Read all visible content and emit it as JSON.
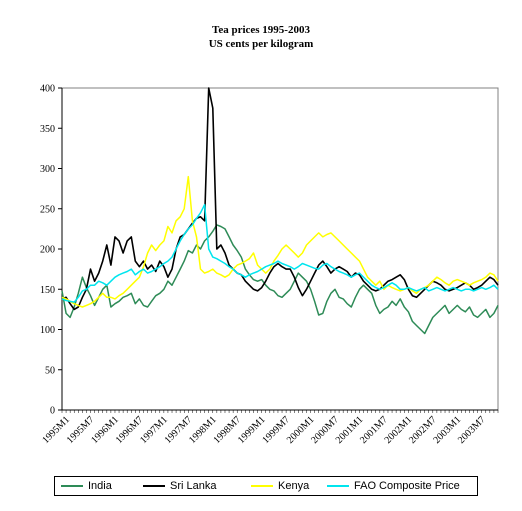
{
  "chart_data": {
    "type": "line",
    "title": "Tea prices 1995-2003",
    "subtitle": "US cents per kilogram",
    "ylim": [
      0,
      400
    ],
    "yticks": [
      0,
      50,
      100,
      150,
      200,
      250,
      300,
      350,
      400
    ],
    "xtick_labels": [
      "1995M1",
      "1995M7",
      "1996M1",
      "1996M7",
      "1997M1",
      "1997M7",
      "1998M1",
      "1998M7",
      "1999M1",
      "1999M7",
      "2000M1",
      "2000M7",
      "2001M1",
      "2001M7",
      "2002M1",
      "2002M7",
      "2003M1",
      "2003M7"
    ],
    "months": 108,
    "grid": false,
    "legend_position": "bottom",
    "series": [
      {
        "name": "India",
        "color": "#2e8b57",
        "values": [
          148,
          120,
          115,
          128,
          145,
          165,
          152,
          142,
          130,
          140,
          150,
          155,
          128,
          132,
          135,
          140,
          142,
          145,
          132,
          138,
          130,
          128,
          135,
          142,
          145,
          150,
          160,
          155,
          165,
          175,
          185,
          198,
          195,
          205,
          200,
          210,
          215,
          222,
          230,
          228,
          225,
          215,
          205,
          198,
          190,
          175,
          168,
          162,
          160,
          162,
          155,
          150,
          148,
          142,
          140,
          145,
          150,
          160,
          170,
          165,
          160,
          150,
          135,
          118,
          120,
          135,
          145,
          150,
          140,
          138,
          132,
          128,
          140,
          150,
          155,
          150,
          145,
          130,
          120,
          125,
          128,
          135,
          130,
          138,
          128,
          122,
          110,
          105,
          100,
          95,
          105,
          115,
          120,
          125,
          130,
          120,
          125,
          130,
          125,
          122,
          128,
          118,
          115,
          120,
          125,
          115,
          120,
          130
        ]
      },
      {
        "name": "Sri Lanka",
        "color": "#000000",
        "values": [
          138,
          140,
          132,
          125,
          128,
          140,
          150,
          175,
          160,
          170,
          185,
          205,
          180,
          215,
          210,
          195,
          210,
          215,
          185,
          178,
          185,
          175,
          180,
          172,
          185,
          178,
          165,
          175,
          200,
          215,
          218,
          225,
          232,
          238,
          240,
          235,
          400,
          375,
          200,
          205,
          195,
          180,
          175,
          170,
          168,
          160,
          155,
          150,
          148,
          152,
          160,
          170,
          178,
          182,
          178,
          175,
          175,
          165,
          152,
          142,
          150,
          160,
          170,
          180,
          185,
          178,
          170,
          175,
          178,
          175,
          172,
          165,
          170,
          168,
          160,
          155,
          150,
          148,
          150,
          155,
          160,
          162,
          165,
          168,
          162,
          150,
          142,
          140,
          145,
          150,
          155,
          160,
          158,
          155,
          150,
          148,
          150,
          152,
          155,
          158,
          155,
          150,
          152,
          155,
          160,
          165,
          162,
          155
        ]
      },
      {
        "name": "Kenya",
        "color": "#ffff00",
        "values": [
          140,
          138,
          135,
          132,
          130,
          128,
          130,
          132,
          135,
          140,
          145,
          140,
          140,
          138,
          142,
          145,
          150,
          155,
          160,
          165,
          178,
          195,
          205,
          198,
          205,
          210,
          228,
          220,
          235,
          240,
          250,
          290,
          235,
          215,
          175,
          170,
          172,
          175,
          170,
          168,
          165,
          168,
          175,
          180,
          182,
          185,
          188,
          195,
          180,
          175,
          170,
          175,
          185,
          192,
          200,
          205,
          200,
          195,
          190,
          195,
          205,
          210,
          215,
          220,
          215,
          218,
          220,
          215,
          210,
          205,
          200,
          195,
          190,
          185,
          175,
          165,
          160,
          155,
          160,
          150,
          155,
          152,
          150,
          148,
          150,
          152,
          148,
          145,
          150,
          152,
          155,
          160,
          165,
          162,
          158,
          155,
          160,
          162,
          160,
          158,
          155,
          158,
          160,
          162,
          165,
          170,
          168,
          160
        ]
      },
      {
        "name": "FAO Composite Price",
        "color": "#00e5ee",
        "values": [
          138,
          136,
          135,
          134,
          140,
          148,
          150,
          155,
          155,
          160,
          158,
          155,
          160,
          165,
          168,
          170,
          172,
          175,
          168,
          172,
          175,
          170,
          172,
          175,
          178,
          182,
          185,
          190,
          200,
          210,
          218,
          225,
          230,
          238,
          245,
          255,
          200,
          190,
          188,
          185,
          182,
          178,
          175,
          170,
          168,
          165,
          168,
          170,
          172,
          175,
          178,
          180,
          182,
          185,
          182,
          180,
          178,
          175,
          178,
          182,
          180,
          178,
          176,
          175,
          180,
          182,
          178,
          175,
          172,
          170,
          168,
          165,
          168,
          170,
          165,
          160,
          155,
          152,
          150,
          152,
          155,
          158,
          155,
          150,
          150,
          152,
          150,
          148,
          150,
          152,
          148,
          150,
          152,
          150,
          148,
          150,
          152,
          150,
          148,
          150,
          150,
          148,
          150,
          152,
          150,
          152,
          155,
          150
        ]
      }
    ]
  }
}
